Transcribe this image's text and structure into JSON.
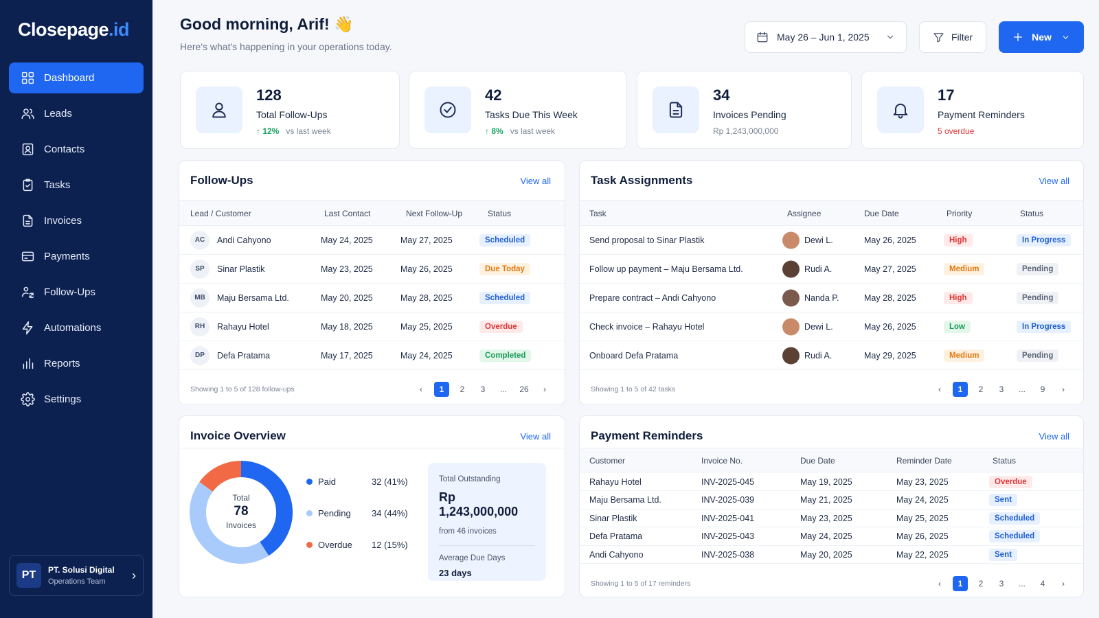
{
  "brand": {
    "name_main": "Closepage",
    "name_accent": ".id"
  },
  "sidebar": {
    "items": [
      {
        "label": "Dashboard",
        "icon": "grid-icon"
      },
      {
        "label": "Leads",
        "icon": "users-icon"
      },
      {
        "label": "Contacts",
        "icon": "contact-card-icon"
      },
      {
        "label": "Tasks",
        "icon": "clipboard-check-icon"
      },
      {
        "label": "Invoices",
        "icon": "document-icon"
      },
      {
        "label": "Payments",
        "icon": "credit-card-icon"
      },
      {
        "label": "Follow-Ups",
        "icon": "user-refresh-icon"
      },
      {
        "label": "Automations",
        "icon": "bolt-icon"
      },
      {
        "label": "Reports",
        "icon": "bar-chart-icon"
      },
      {
        "label": "Settings",
        "icon": "gear-icon"
      }
    ],
    "org": {
      "initials": "PT",
      "name": "PT. Solusi Digital",
      "team": "Operations Team"
    }
  },
  "header": {
    "greeting": "Good morning, Arif! 👋",
    "subtitle": "Here's what's happening in your operations today.",
    "date_range": "May 26 – Jun 1, 2025",
    "filter_label": "Filter",
    "new_label": "New"
  },
  "stats": [
    {
      "value": "128",
      "label": "Total Follow-Ups",
      "change": "↑ 12%",
      "change_note": "vs last week",
      "icon": "user-icon"
    },
    {
      "value": "42",
      "label": "Tasks Due This Week",
      "change": "↑ 8%",
      "change_note": "vs last week",
      "icon": "check-circle-icon"
    },
    {
      "value": "34",
      "label": "Invoices Pending",
      "sub": "Rp 1,243,000,000",
      "icon": "document-icon"
    },
    {
      "value": "17",
      "label": "Payment Reminders",
      "sub": "5 overdue",
      "icon": "bell-icon"
    }
  ],
  "followups": {
    "title": "Follow-Ups",
    "view_all": "View all",
    "columns": [
      "Lead / Customer",
      "Last Contact",
      "Next Follow-Up",
      "Status"
    ],
    "rows": [
      {
        "initials": "AC",
        "name": "Andi Cahyono",
        "last": "May 24, 2025",
        "next": "May 27, 2025",
        "status": "Scheduled"
      },
      {
        "initials": "SP",
        "name": "Sinar Plastik",
        "last": "May 23, 2025",
        "next": "May 26, 2025",
        "status": "Due Today"
      },
      {
        "initials": "MB",
        "name": "Maju Bersama Ltd.",
        "last": "May 20, 2025",
        "next": "May 28, 2025",
        "status": "Scheduled"
      },
      {
        "initials": "RH",
        "name": "Rahayu Hotel",
        "last": "May 18, 2025",
        "next": "May 25, 2025",
        "status": "Overdue"
      },
      {
        "initials": "DP",
        "name": "Defa Pratama",
        "last": "May 17, 2025",
        "next": "May 24, 2025",
        "status": "Completed"
      }
    ],
    "footer": "Showing 1 to 5 of 128 follow-ups",
    "pages": [
      "1",
      "2",
      "3",
      "...",
      "26"
    ]
  },
  "tasks": {
    "title": "Task Assignments",
    "view_all": "View all",
    "columns": [
      "Task",
      "Assignee",
      "Due Date",
      "Priority",
      "Status"
    ],
    "rows": [
      {
        "task": "Send proposal to Sinar Plastik",
        "assignee": "Dewi L.",
        "due": "May 26, 2025",
        "priority": "High",
        "status": "In Progress"
      },
      {
        "task": "Follow up payment – Maju Bersama Ltd.",
        "assignee": "Rudi A.",
        "due": "May 27, 2025",
        "priority": "Medium",
        "status": "Pending"
      },
      {
        "task": "Prepare contract – Andi Cahyono",
        "assignee": "Nanda P.",
        "due": "May 28, 2025",
        "priority": "High",
        "status": "Pending"
      },
      {
        "task": "Check invoice – Rahayu Hotel",
        "assignee": "Dewi L.",
        "due": "May 26, 2025",
        "priority": "Low",
        "status": "In Progress"
      },
      {
        "task": "Onboard Defa Pratama",
        "assignee": "Rudi A.",
        "due": "May 29, 2025",
        "priority": "Medium",
        "status": "Pending"
      }
    ],
    "footer": "Showing 1 to 5 of 42 tasks",
    "pages": [
      "1",
      "2",
      "3",
      "...",
      "9"
    ]
  },
  "invoice_overview": {
    "title": "Invoice Overview",
    "view_all": "View all",
    "donut_label_top": "Total",
    "donut_value": "78",
    "donut_label_bottom": "Invoices",
    "legend": [
      {
        "label": "Paid",
        "value": "32 (41%)",
        "color": "#1f67f0",
        "fraction": 0.41
      },
      {
        "label": "Pending",
        "value": "34 (44%)",
        "color": "#a9cbfb",
        "fraction": 0.44
      },
      {
        "label": "Overdue",
        "value": "12 (15%)",
        "color": "#f26a45",
        "fraction": 0.15
      }
    ],
    "outstanding_label": "Total Outstanding",
    "outstanding_value": "Rp 1,243,000,000",
    "outstanding_sub": "from 46 invoices",
    "avg_label": "Average Due Days",
    "avg_value": "23 days"
  },
  "reminders": {
    "title": "Payment Reminders",
    "view_all": "View all",
    "columns": [
      "Customer",
      "Invoice No.",
      "Due Date",
      "Reminder Date",
      "Status"
    ],
    "rows": [
      {
        "customer": "Rahayu Hotel",
        "invoice": "INV-2025-045",
        "due": "May 19, 2025",
        "reminder": "May 23, 2025",
        "status": "Overdue"
      },
      {
        "customer": "Maju Bersama Ltd.",
        "invoice": "INV-2025-039",
        "due": "May 21, 2025",
        "reminder": "May 24, 2025",
        "status": "Sent"
      },
      {
        "customer": "Sinar Plastik",
        "invoice": "INV-2025-041",
        "due": "May 23, 2025",
        "reminder": "May 25, 2025",
        "status": "Scheduled"
      },
      {
        "customer": "Defa Pratama",
        "invoice": "INV-2025-043",
        "due": "May 24, 2025",
        "reminder": "May 26, 2025",
        "status": "Scheduled"
      },
      {
        "customer": "Andi Cahyono",
        "invoice": "INV-2025-038",
        "due": "May 20, 2025",
        "reminder": "May 22, 2025",
        "status": "Sent"
      }
    ],
    "footer": "Showing 1 to 5 of 17 reminders",
    "pages": [
      "1",
      "2",
      "3",
      "...",
      "4"
    ]
  }
}
